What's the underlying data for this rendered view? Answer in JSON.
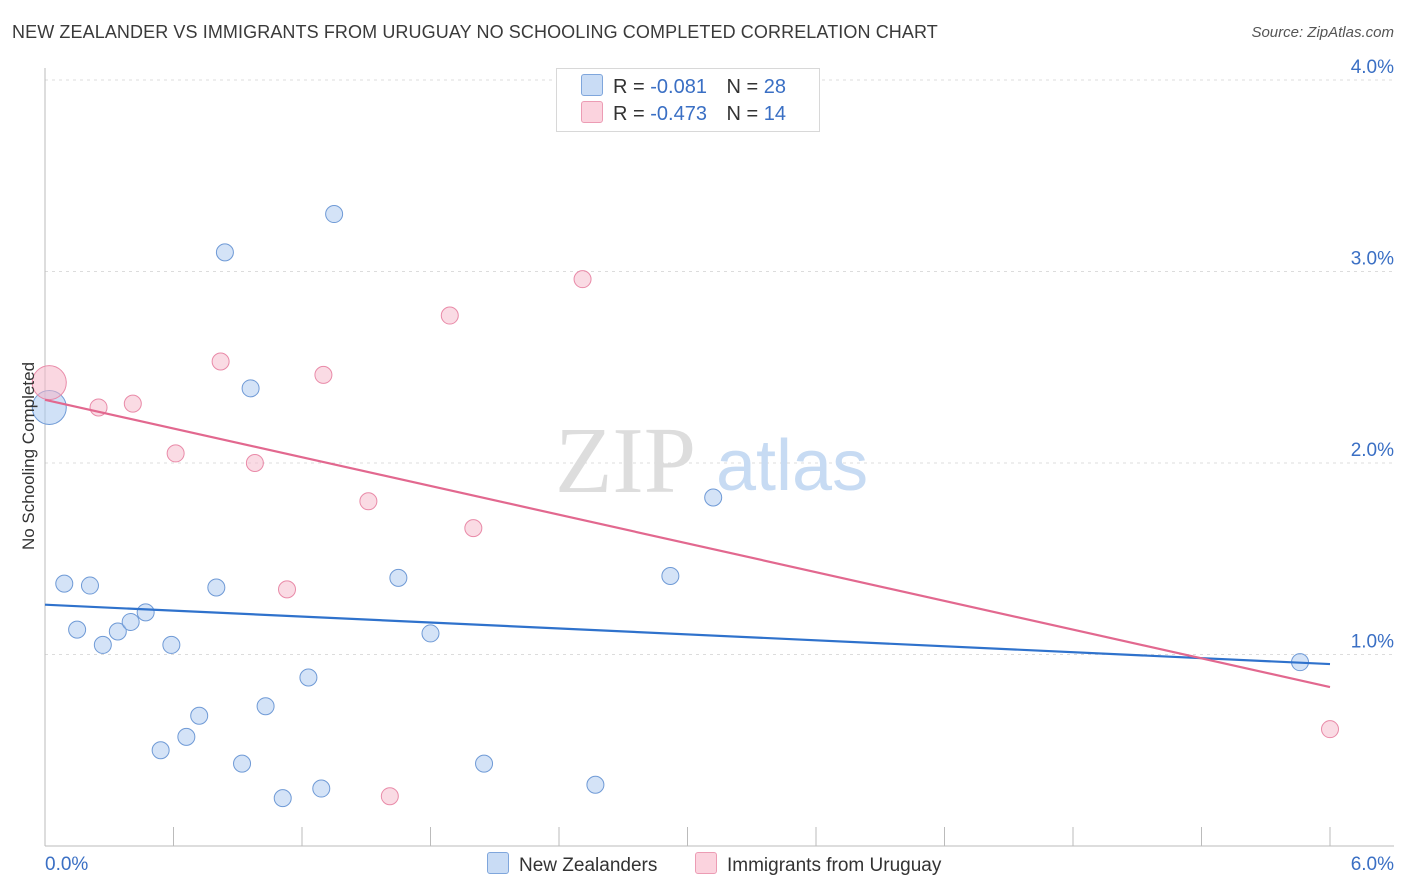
{
  "title": "NEW ZEALANDER VS IMMIGRANTS FROM URUGUAY NO SCHOOLING COMPLETED CORRELATION CHART",
  "source": "Source: ZipAtlas.com",
  "watermark": {
    "zip": "ZIP",
    "atlas": "atlas"
  },
  "legend_top": [
    {
      "r_label": "R =",
      "r_value": "-0.081",
      "n_label": "N =",
      "n_value": "28",
      "color": "#a9c8f0"
    },
    {
      "r_label": "R =",
      "r_value": "-0.473",
      "n_label": "N =",
      "n_value": "14",
      "color": "#f6b7c9"
    }
  ],
  "legend_bottom": [
    {
      "label": "New Zealanders",
      "color": "#a9c8f0"
    },
    {
      "label": "Immigrants from Uruguay",
      "color": "#f6b7c9"
    }
  ],
  "chart_data": {
    "type": "scatter",
    "title": "NEW ZEALANDER VS IMMIGRANTS FROM URUGUAY NO SCHOOLING COMPLETED CORRELATION CHART",
    "xlabel": "",
    "ylabel": "No Schooling Completed",
    "xlim": [
      0,
      6
    ],
    "ylim": [
      0,
      4.1
    ],
    "x_tick_labels": [
      {
        "value": 0,
        "label": "0.0%"
      },
      {
        "value": 6,
        "label": "6.0%"
      }
    ],
    "y_tick_labels": [
      {
        "value": 1,
        "label": "1.0%"
      },
      {
        "value": 2,
        "label": "2.0%"
      },
      {
        "value": 3,
        "label": "3.0%"
      },
      {
        "value": 4,
        "label": "4.0%"
      }
    ],
    "series": [
      {
        "name": "New Zealanders",
        "color": "#a9c8f0",
        "stroke": "#6f9ad6",
        "trend_color": "#2f72cc",
        "trend": {
          "x0": 0,
          "y0": 1.26,
          "x1": 6,
          "y1": 0.95
        },
        "points": [
          {
            "x": 0.02,
            "y": 2.29,
            "big": true
          },
          {
            "x": 0.09,
            "y": 1.37
          },
          {
            "x": 0.21,
            "y": 1.36
          },
          {
            "x": 0.8,
            "y": 1.35
          },
          {
            "x": 0.15,
            "y": 1.13
          },
          {
            "x": 0.27,
            "y": 1.05
          },
          {
            "x": 0.34,
            "y": 1.12
          },
          {
            "x": 0.4,
            "y": 1.17
          },
          {
            "x": 0.47,
            "y": 1.22
          },
          {
            "x": 0.59,
            "y": 1.05
          },
          {
            "x": 0.84,
            "y": 3.1
          },
          {
            "x": 0.96,
            "y": 2.39
          },
          {
            "x": 1.35,
            "y": 3.3
          },
          {
            "x": 1.65,
            "y": 1.4
          },
          {
            "x": 1.8,
            "y": 1.11
          },
          {
            "x": 2.92,
            "y": 1.41
          },
          {
            "x": 3.12,
            "y": 1.82
          },
          {
            "x": 1.23,
            "y": 0.88
          },
          {
            "x": 1.03,
            "y": 0.73
          },
          {
            "x": 0.72,
            "y": 0.68
          },
          {
            "x": 0.66,
            "y": 0.57
          },
          {
            "x": 0.54,
            "y": 0.5
          },
          {
            "x": 0.92,
            "y": 0.43
          },
          {
            "x": 1.11,
            "y": 0.25
          },
          {
            "x": 1.29,
            "y": 0.3
          },
          {
            "x": 2.05,
            "y": 0.43
          },
          {
            "x": 2.57,
            "y": 0.32
          },
          {
            "x": 5.86,
            "y": 0.96
          }
        ]
      },
      {
        "name": "Immigrants from Uruguay",
        "color": "#f6b7c9",
        "stroke": "#e98aa8",
        "trend_color": "#e2688f",
        "trend": {
          "x0": 0,
          "y0": 2.33,
          "x1": 6,
          "y1": 0.83
        },
        "points": [
          {
            "x": 0.02,
            "y": 2.42,
            "big": true
          },
          {
            "x": 0.25,
            "y": 2.29
          },
          {
            "x": 0.41,
            "y": 2.31
          },
          {
            "x": 0.61,
            "y": 2.05
          },
          {
            "x": 0.82,
            "y": 2.53
          },
          {
            "x": 0.98,
            "y": 2.0
          },
          {
            "x": 1.3,
            "y": 2.46
          },
          {
            "x": 1.89,
            "y": 2.77
          },
          {
            "x": 2.51,
            "y": 2.96
          },
          {
            "x": 1.51,
            "y": 1.8
          },
          {
            "x": 2.0,
            "y": 1.66
          },
          {
            "x": 1.13,
            "y": 1.34
          },
          {
            "x": 1.61,
            "y": 0.26
          },
          {
            "x": 6.0,
            "y": 0.61
          }
        ]
      }
    ],
    "grid": true
  }
}
